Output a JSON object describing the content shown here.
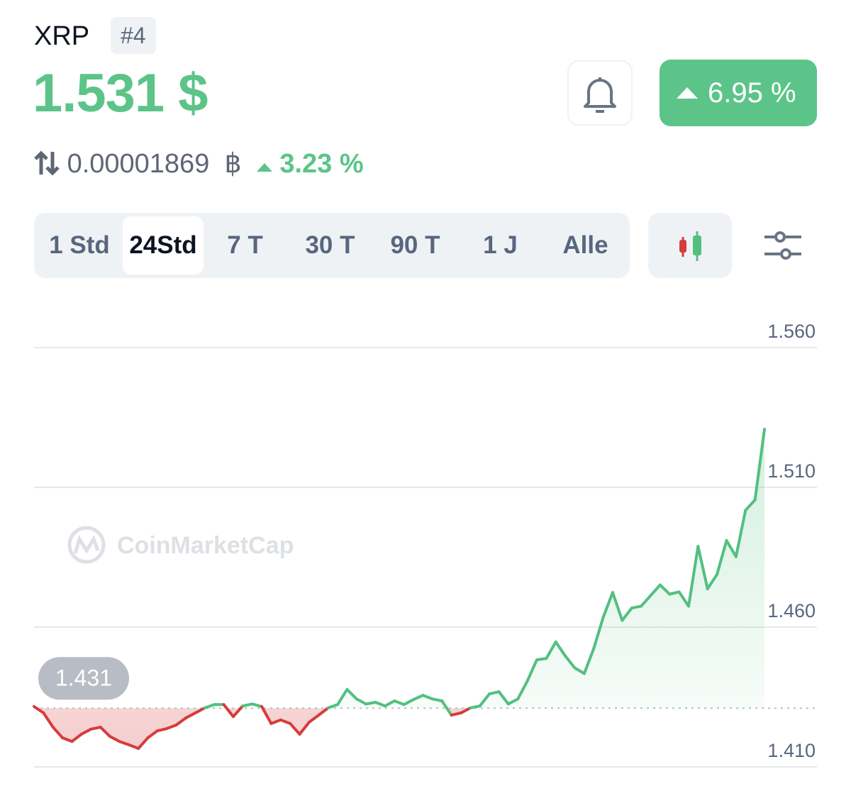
{
  "header": {
    "symbol": "XRP",
    "rank": "#4",
    "price": "1.531 $",
    "change": "6.95 %",
    "btc_price": "0.00001869",
    "btc_symbol": "฿",
    "btc_change": "3.23 %"
  },
  "tabs": [
    "1 Std",
    "24Std",
    "7 T",
    "30 T",
    "90 T",
    "1 J",
    "Alle"
  ],
  "active_tab": 1,
  "watermark": "CoinMarketCap",
  "chart_data": {
    "type": "line",
    "values": [
      1.4316,
      1.4293,
      1.4242,
      1.4204,
      1.4191,
      1.4217,
      1.4235,
      1.4242,
      1.4209,
      1.4191,
      1.4179,
      1.4166,
      1.4204,
      1.4229,
      1.4237,
      1.425,
      1.4275,
      1.4293,
      1.4311,
      1.4323,
      1.4323,
      1.428,
      1.4318,
      1.4325,
      1.4316,
      1.4255,
      1.4268,
      1.4255,
      1.4217,
      1.426,
      1.4285,
      1.4311,
      1.4323,
      1.4377,
      1.4343,
      1.4325,
      1.4331,
      1.4318,
      1.4336,
      1.4323,
      1.4341,
      1.4356,
      1.4343,
      1.4336,
      1.4285,
      1.4293,
      1.4311,
      1.4318,
      1.4361,
      1.4369,
      1.4325,
      1.4343,
      1.4407,
      1.4483,
      1.4488,
      1.4547,
      1.4497,
      1.4454,
      1.4434,
      1.4523,
      1.4635,
      1.4724,
      1.4624,
      1.4668,
      1.4675,
      1.4713,
      1.4751,
      1.4718,
      1.4726,
      1.4675,
      1.4889,
      1.4737,
      1.4789,
      1.491,
      1.4852,
      1.5018,
      1.5055,
      1.5308
    ],
    "baseline": 1.431,
    "up_color": "#52c07f",
    "down_color": "#d63c3c",
    "ylim": [
      1.41,
      1.56
    ],
    "yticks": [
      {
        "value": 1.41,
        "label": "1.410"
      },
      {
        "value": 1.46,
        "label": "1.460"
      },
      {
        "value": 1.51,
        "label": "1.510"
      },
      {
        "value": 1.56,
        "label": "1.560"
      }
    ],
    "grid": true
  }
}
